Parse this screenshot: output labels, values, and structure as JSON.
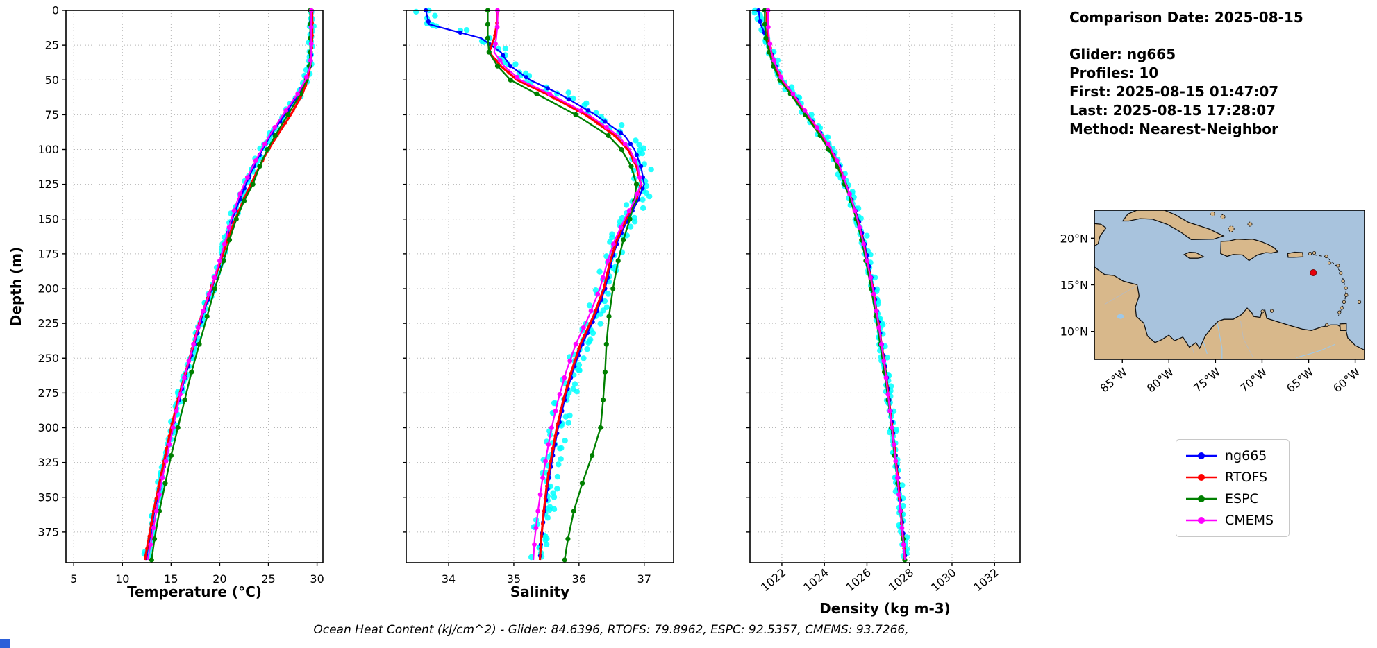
{
  "info": {
    "comparison_date": "Comparison Date: 2025-08-15",
    "details": [
      "Glider: ng665",
      "Profiles: 10",
      "First: 2025-08-15 01:47:07",
      "Last: 2025-08-15 17:28:07",
      "Method: Nearest-Neighbor"
    ]
  },
  "footer": {
    "text": "Ocean Heat Content (kJ/cm^2) - Glider: 84.6396,  RTOFS: 79.8962,  ESPC: 92.5357,  CMEMS: 93.7266,"
  },
  "legend": {
    "entries": [
      {
        "label": "ng665",
        "color": "#0000ff"
      },
      {
        "label": "RTOFS",
        "color": "#ff0000"
      },
      {
        "label": "ESPC",
        "color": "#008000"
      },
      {
        "label": "CMEMS",
        "color": "#ff00ff"
      }
    ]
  },
  "ylabel": "Depth (m)",
  "chart_data": {
    "type": "line",
    "orientation": "depth-profile",
    "depths": [
      0,
      10,
      20,
      30,
      40,
      50,
      60,
      75,
      90,
      100,
      112,
      125,
      137,
      150,
      165,
      180,
      200,
      220,
      240,
      260,
      280,
      300,
      320,
      340,
      360,
      380,
      395
    ],
    "ylim": [
      0,
      397
    ],
    "yticks": [
      0,
      25,
      50,
      75,
      100,
      125,
      150,
      175,
      200,
      225,
      250,
      275,
      300,
      325,
      350,
      375
    ],
    "panels": [
      {
        "id": "temperature",
        "title": "Temperature (°C)",
        "xlim": [
          4.2,
          30.6
        ],
        "xticks": [
          5,
          10,
          15,
          20,
          25,
          30
        ],
        "rotate_xticklabels": false,
        "show_yticklabels": true,
        "glider_scatter": {
          "source": "ng665",
          "color": "#00ffff",
          "jitter": 0.28
        },
        "series": [
          {
            "name": "ng665",
            "color": "#0000ff",
            "values": [
              29.4,
              29.4,
              29.4,
              29.4,
              29.3,
              28.9,
              28.1,
              26.7,
              25.2,
              24.4,
              23.5,
              22.7,
              22.0,
              21.3,
              20.6,
              20.1,
              19.2,
              18.2,
              17.4,
              16.6,
              15.8,
              15.1,
              14.5,
              13.9,
              13.3,
              12.8,
              12.4
            ]
          },
          {
            "name": "RTOFS",
            "color": "#ff0000",
            "values": [
              29.5,
              29.5,
              29.5,
              29.4,
              29.3,
              29.0,
              28.5,
              27.3,
              25.9,
              25.0,
              24.1,
              23.2,
              22.4,
              21.6,
              20.8,
              20.1,
              19.1,
              18.1,
              17.3,
              16.5,
              15.7,
              15.0,
              14.4,
              13.8,
              13.2,
              12.7,
              12.3
            ]
          },
          {
            "name": "ESPC",
            "color": "#008000",
            "values": [
              29.3,
              29.3,
              29.3,
              29.3,
              29.2,
              28.9,
              28.3,
              27.0,
              25.7,
              24.9,
              24.1,
              23.4,
              22.5,
              21.7,
              21.0,
              20.4,
              19.5,
              18.7,
              17.9,
              17.1,
              16.4,
              15.7,
              15.0,
              14.4,
              13.8,
              13.3,
              13.0
            ]
          },
          {
            "name": "CMEMS",
            "color": "#ff00ff",
            "values": [
              29.4,
              29.4,
              29.4,
              29.4,
              29.3,
              28.8,
              28.0,
              26.5,
              25.1,
              24.3,
              23.4,
              22.5,
              21.8,
              21.2,
              20.6,
              20.0,
              19.1,
              18.1,
              17.3,
              16.5,
              15.8,
              15.2,
              14.6,
              14.0,
              13.5,
              13.0,
              12.6
            ]
          }
        ]
      },
      {
        "id": "salinity",
        "title": "Salinity",
        "xlim": [
          33.35,
          37.45
        ],
        "xticks": [
          34,
          35,
          36,
          37
        ],
        "rotate_xticklabels": false,
        "show_yticklabels": false,
        "glider_scatter": {
          "source": "ng665",
          "color": "#00ffff",
          "jitter": 0.15
        },
        "series": [
          {
            "name": "ng665",
            "color": "#0000ff",
            "values": [
              33.65,
              33.7,
              34.5,
              34.8,
              34.95,
              35.25,
              35.7,
              36.25,
              36.7,
              36.85,
              36.95,
              37.0,
              36.9,
              36.75,
              36.6,
              36.5,
              36.4,
              36.25,
              36.05,
              35.9,
              35.78,
              35.68,
              35.6,
              35.53,
              35.47,
              35.42,
              35.4
            ]
          },
          {
            "name": "RTOFS",
            "color": "#ff0000",
            "values": [
              34.75,
              34.74,
              34.7,
              34.62,
              34.8,
              35.05,
              35.5,
              36.1,
              36.55,
              36.75,
              36.88,
              36.95,
              36.87,
              36.72,
              36.58,
              36.48,
              36.38,
              36.22,
              36.02,
              35.88,
              35.76,
              35.66,
              35.58,
              35.51,
              35.46,
              35.42,
              35.4
            ]
          },
          {
            "name": "ESPC",
            "color": "#008000",
            "values": [
              34.6,
              34.6,
              34.6,
              34.62,
              34.75,
              34.95,
              35.35,
              35.95,
              36.45,
              36.65,
              36.8,
              36.88,
              36.85,
              36.78,
              36.68,
              36.6,
              36.52,
              36.46,
              36.42,
              36.4,
              36.37,
              36.33,
              36.2,
              36.05,
              35.92,
              35.83,
              35.78
            ]
          },
          {
            "name": "CMEMS",
            "color": "#ff00ff",
            "values": [
              34.75,
              34.75,
              34.73,
              34.7,
              34.85,
              35.1,
              35.55,
              36.15,
              36.6,
              36.78,
              36.9,
              36.95,
              36.85,
              36.7,
              36.55,
              36.44,
              36.32,
              36.15,
              35.95,
              35.8,
              35.68,
              35.58,
              35.5,
              35.43,
              35.37,
              35.32,
              35.3
            ]
          }
        ]
      },
      {
        "id": "density",
        "title": "Density (kg m-3)",
        "xlim": [
          1020.5,
          1033.2
        ],
        "xticks": [
          1022,
          1024,
          1026,
          1028,
          1030,
          1032
        ],
        "rotate_xticklabels": true,
        "show_yticklabels": false,
        "glider_scatter": {
          "source": "ng665",
          "color": "#00ffff",
          "jitter": 0.18
        },
        "series": [
          {
            "name": "ng665",
            "color": "#0000ff",
            "values": [
              1020.9,
              1021.0,
              1021.3,
              1021.5,
              1021.7,
              1022.0,
              1022.5,
              1023.2,
              1023.9,
              1024.3,
              1024.7,
              1025.0,
              1025.3,
              1025.6,
              1025.85,
              1026.05,
              1026.3,
              1026.5,
              1026.7,
              1026.9,
              1027.05,
              1027.2,
              1027.35,
              1027.5,
              1027.6,
              1027.73,
              1027.8
            ]
          },
          {
            "name": "RTOFS",
            "color": "#ff0000",
            "values": [
              1021.3,
              1021.3,
              1021.35,
              1021.5,
              1021.7,
              1022.0,
              1022.5,
              1023.2,
              1023.9,
              1024.3,
              1024.7,
              1025.0,
              1025.28,
              1025.55,
              1025.8,
              1026.0,
              1026.28,
              1026.48,
              1026.68,
              1026.88,
              1027.03,
              1027.18,
              1027.33,
              1027.47,
              1027.58,
              1027.7,
              1027.78
            ]
          },
          {
            "name": "ESPC",
            "color": "#008000",
            "values": [
              1021.2,
              1021.2,
              1021.25,
              1021.4,
              1021.6,
              1021.9,
              1022.4,
              1023.1,
              1023.8,
              1024.2,
              1024.6,
              1024.95,
              1025.25,
              1025.5,
              1025.75,
              1025.95,
              1026.2,
              1026.42,
              1026.62,
              1026.82,
              1027.0,
              1027.15,
              1027.3,
              1027.45,
              1027.58,
              1027.7,
              1027.78
            ]
          },
          {
            "name": "CMEMS",
            "color": "#ff00ff",
            "values": [
              1021.35,
              1021.35,
              1021.4,
              1021.5,
              1021.72,
              1022.02,
              1022.52,
              1023.22,
              1023.92,
              1024.32,
              1024.72,
              1025.02,
              1025.3,
              1025.55,
              1025.8,
              1026.0,
              1026.28,
              1026.48,
              1026.68,
              1026.87,
              1027.02,
              1027.17,
              1027.32,
              1027.46,
              1027.57,
              1027.7,
              1027.78
            ]
          }
        ]
      }
    ]
  },
  "map": {
    "extent": {
      "west": 88,
      "east": 59,
      "south": 7,
      "north": 23
    },
    "lat_ticks": [
      {
        "label": "20°N",
        "lat": 20
      },
      {
        "label": "15°N",
        "lat": 15
      },
      {
        "label": "10°N",
        "lat": 10
      }
    ],
    "lon_ticks": [
      {
        "label": "85°W",
        "w": 85
      },
      {
        "label": "80°W",
        "w": 80
      },
      {
        "label": "75°W",
        "w": 75
      },
      {
        "label": "70°W",
        "w": 70
      },
      {
        "label": "65°W",
        "w": 65
      },
      {
        "label": "60°W",
        "w": 60
      }
    ],
    "glider_marker": {
      "lon_w": 64.5,
      "lat": 16.3,
      "color": "#e8000b"
    },
    "ocean_color": "#a8c3dd",
    "land_color": "#d8b88b"
  }
}
